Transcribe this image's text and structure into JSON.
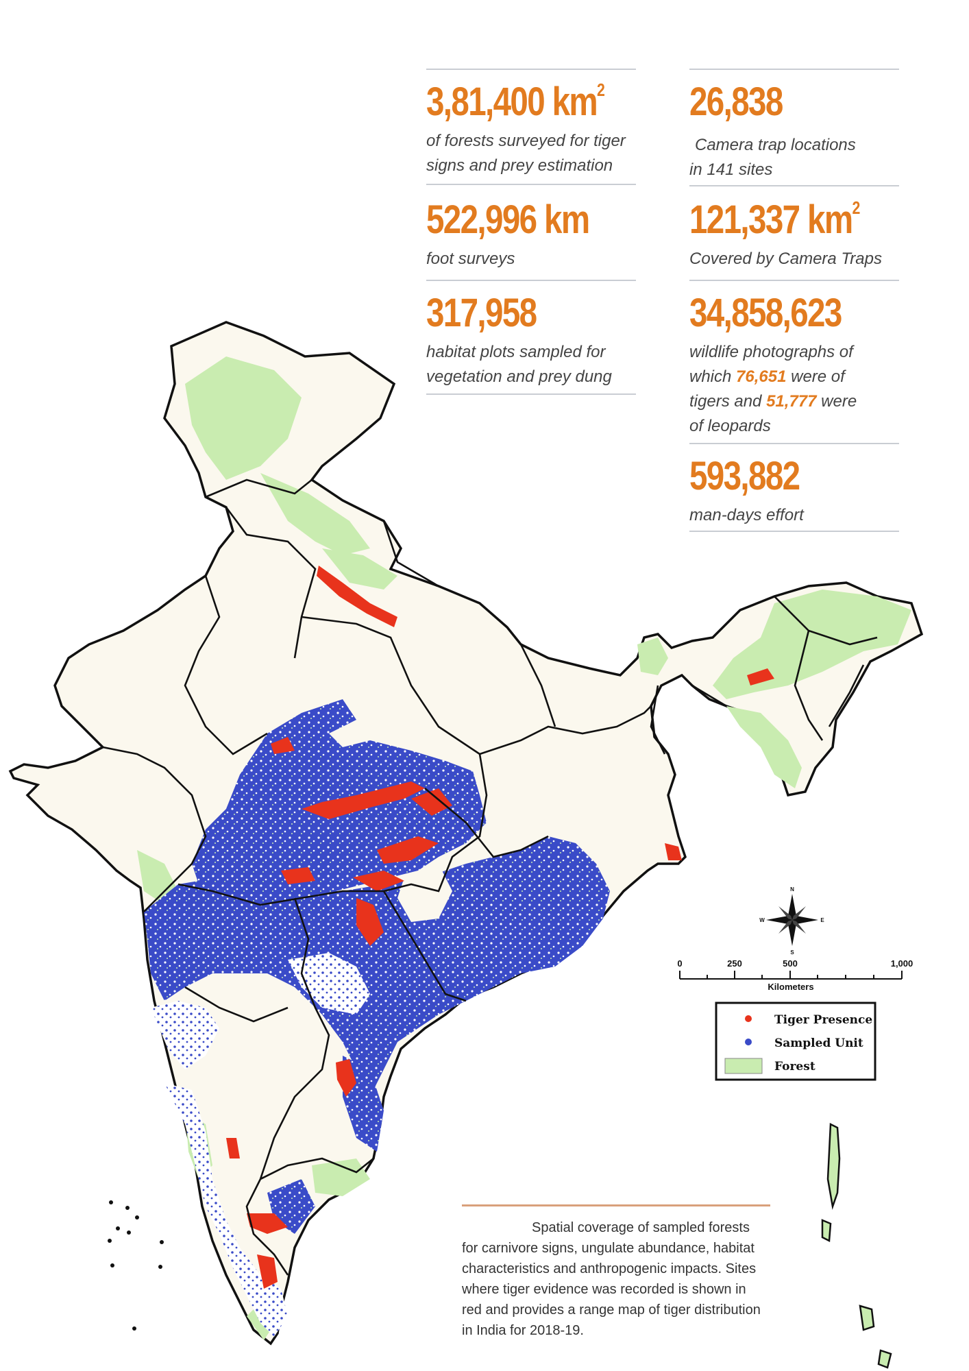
{
  "stats": {
    "forest_area": {
      "value": "3,81,400 km",
      "sup": "2",
      "desc_line1": "of forests surveyed for tiger",
      "desc_line2": "signs and prey estimation"
    },
    "camera_locations": {
      "value": "26,838",
      "desc_line1": "Camera trap locations",
      "desc_line2": "in 141 sites"
    },
    "foot_surveys": {
      "value": "522,996 km",
      "desc_line1": "foot surveys"
    },
    "camera_coverage": {
      "value": "121,337 km",
      "sup": "2",
      "desc_line1": "Covered by Camera Traps"
    },
    "habitat_plots": {
      "value": "317,958",
      "desc_line1": "habitat plots sampled for",
      "desc_line2": "vegetation and prey dung"
    },
    "wildlife_photos": {
      "value": "34,858,623",
      "desc_line1": "wildlife photographs of",
      "desc_pre": "which",
      "tigers": "76,651",
      "desc_mid": "were of",
      "desc_mid2": "tigers and",
      "leopards": "51,777",
      "desc_post": "were",
      "desc_line4": "of leopards"
    },
    "man_days": {
      "value": "593,882",
      "desc_line1": "man-days effort"
    }
  },
  "legend": {
    "items": [
      {
        "label": "Tiger Presence",
        "color": "#e8331c"
      },
      {
        "label": "Sampled Unit",
        "color": "#3a4bc8"
      },
      {
        "label": "Forest",
        "color": "#c9ecb0"
      }
    ]
  },
  "scale_bar": {
    "ticks": [
      "0",
      "250",
      "500",
      "1,000"
    ],
    "unit": "Kilometers"
  },
  "compass": {
    "n": "N",
    "e": "E",
    "s": "S",
    "w": "W"
  },
  "caption": {
    "text_first": "Spatial coverage of sampled",
    "text_rest": "forests for carnivore signs, ungulate abundance, habitat characteristics and anthropogenic impacts. Sites where tiger evidence was recorded is shown in red and provides a range map of tiger distribution in India for 2018-19."
  },
  "colors": {
    "land": "#fbf8ee",
    "forest": "#c9ecb0",
    "sampled": "#3a4bc8",
    "tiger": "#e8331c",
    "accent": "#e27b1f"
  }
}
